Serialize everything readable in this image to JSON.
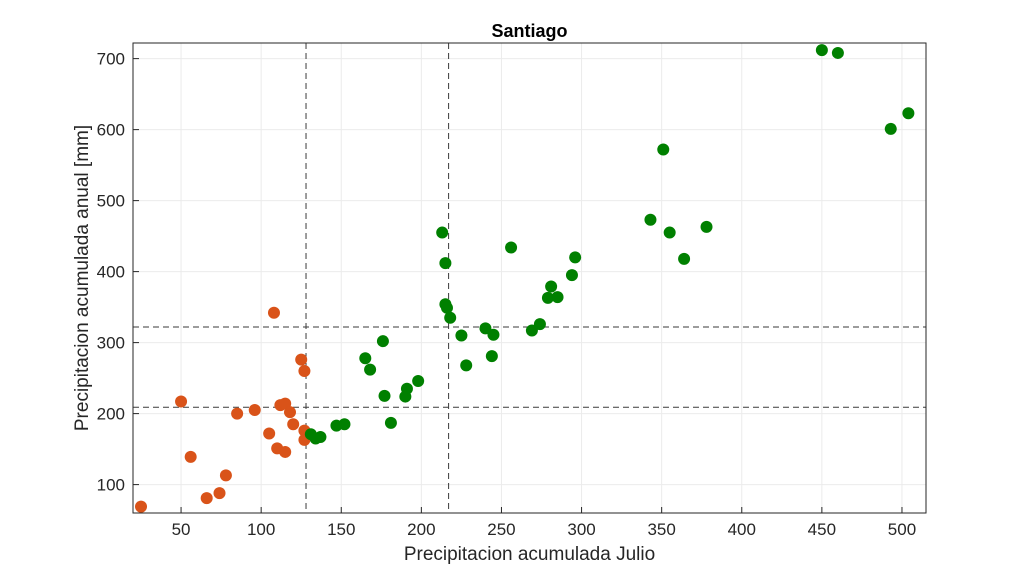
{
  "chart_data": {
    "type": "scatter",
    "title": "Santiago",
    "xlabel": "Precipitacion acumulada Julio",
    "ylabel": "Precipitacion acumulada anual [mm]",
    "xlim": [
      20,
      515
    ],
    "ylim": [
      60,
      722
    ],
    "xticks": [
      50,
      100,
      150,
      200,
      250,
      300,
      350,
      400,
      450,
      500
    ],
    "yticks": [
      100,
      200,
      300,
      400,
      500,
      600,
      700
    ],
    "grid": true,
    "reference_lines": {
      "vertical": [
        128,
        217
      ],
      "horizontal": [
        209,
        322
      ]
    },
    "series": [
      {
        "color": "#d95319",
        "points": [
          [
            25,
            69
          ],
          [
            50,
            217
          ],
          [
            56,
            139
          ],
          [
            66,
            81
          ],
          [
            74,
            88
          ],
          [
            78,
            113
          ],
          [
            85,
            200
          ],
          [
            96,
            205
          ],
          [
            105,
            172
          ],
          [
            108,
            342
          ],
          [
            110,
            151
          ],
          [
            112,
            212
          ],
          [
            115,
            146
          ],
          [
            115,
            214
          ],
          [
            118,
            202
          ],
          [
            120,
            185
          ],
          [
            125,
            276
          ],
          [
            127,
            260
          ],
          [
            127,
            176
          ],
          [
            127,
            163
          ]
        ]
      },
      {
        "color": "#008000",
        "points": [
          [
            131,
            171
          ],
          [
            134,
            165
          ],
          [
            137,
            167
          ],
          [
            147,
            183
          ],
          [
            152,
            185
          ],
          [
            165,
            278
          ],
          [
            168,
            262
          ],
          [
            176,
            302
          ],
          [
            177,
            225
          ],
          [
            181,
            187
          ],
          [
            190,
            224
          ],
          [
            191,
            235
          ],
          [
            198,
            246
          ],
          [
            213,
            455
          ],
          [
            215,
            412
          ],
          [
            215,
            354
          ],
          [
            216,
            349
          ],
          [
            218,
            335
          ],
          [
            225,
            310
          ],
          [
            228,
            268
          ],
          [
            240,
            320
          ],
          [
            244,
            281
          ],
          [
            245,
            311
          ],
          [
            256,
            434
          ],
          [
            269,
            317
          ],
          [
            274,
            326
          ],
          [
            279,
            363
          ],
          [
            281,
            379
          ],
          [
            285,
            364
          ],
          [
            294,
            395
          ],
          [
            296,
            420
          ],
          [
            343,
            473
          ],
          [
            351,
            572
          ],
          [
            355,
            455
          ],
          [
            364,
            418
          ],
          [
            378,
            463
          ],
          [
            450,
            712
          ],
          [
            460,
            708
          ],
          [
            493,
            601
          ],
          [
            504,
            623
          ]
        ]
      }
    ]
  }
}
